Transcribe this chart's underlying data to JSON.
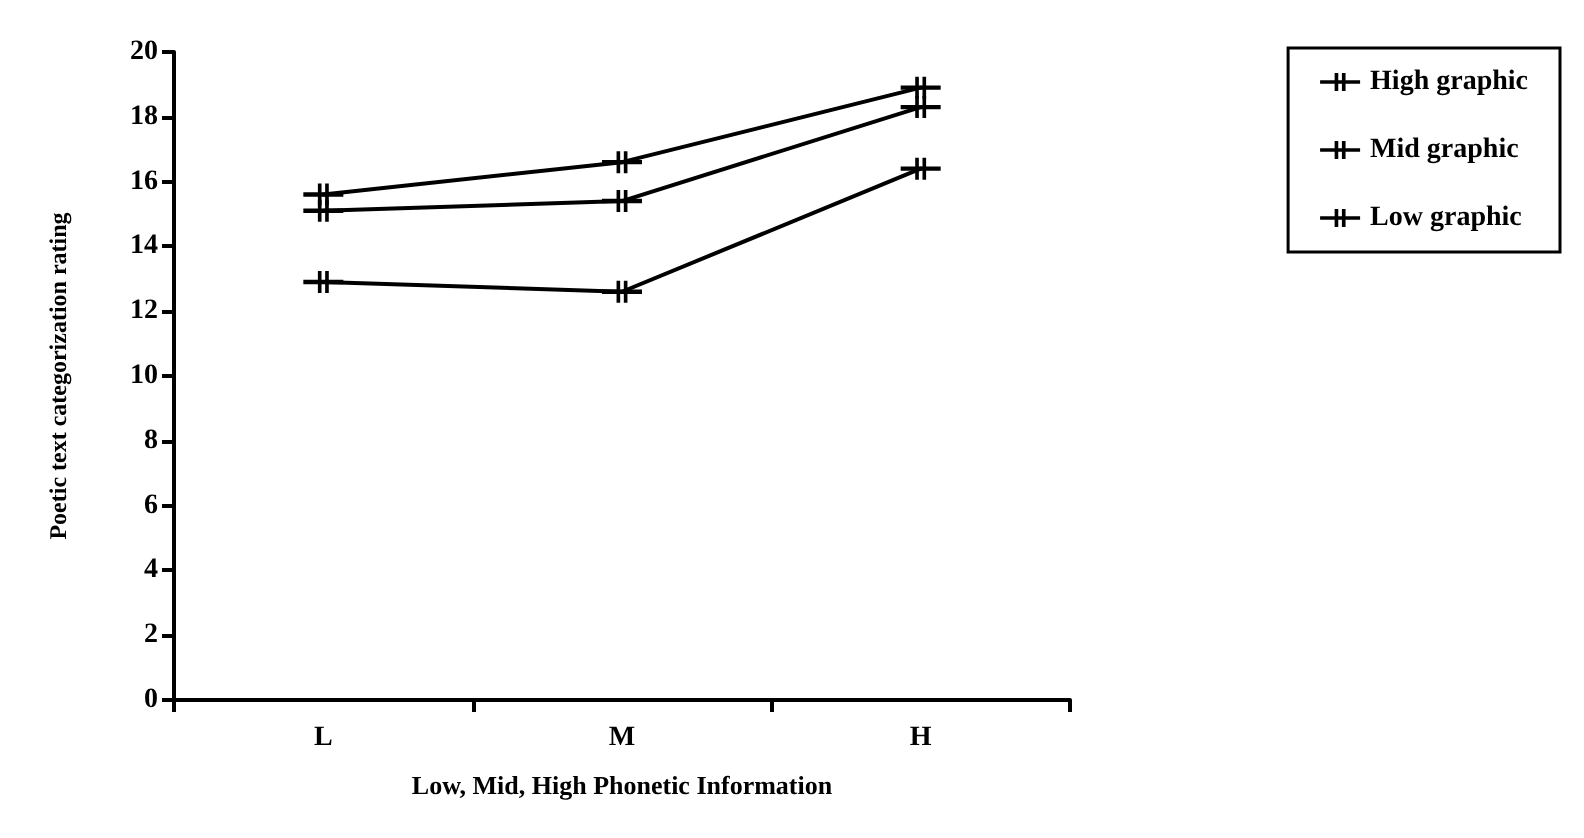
{
  "chart_data": {
    "type": "line",
    "xlabel": "Low, Mid, High Phonetic Information",
    "ylabel": "Poetic text categorization rating",
    "categories": [
      "L",
      "M",
      "H"
    ],
    "series": [
      {
        "name": "High graphic",
        "color": "#000000",
        "values": [
          15.6,
          16.6,
          18.9
        ]
      },
      {
        "name": "Mid graphic",
        "color": "#000000",
        "values": [
          15.1,
          15.4,
          18.3
        ]
      },
      {
        "name": "Low graphic",
        "color": "#000000",
        "values": [
          12.9,
          12.6,
          16.4
        ]
      }
    ],
    "ylim": [
      0,
      20
    ],
    "yticks": [
      0,
      2,
      4,
      6,
      8,
      10,
      12,
      14,
      16,
      18,
      20
    ],
    "legend": "top right",
    "marker": "cross",
    "line_style": "solid",
    "grid": false
  }
}
